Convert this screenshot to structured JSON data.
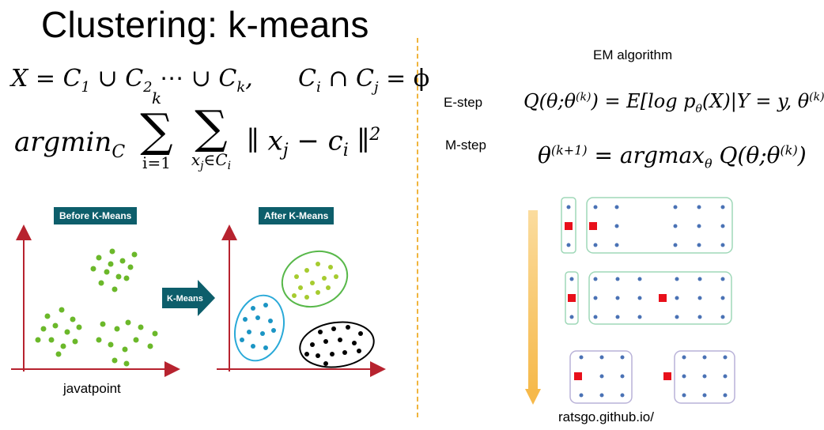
{
  "slide": {
    "title": "Clustering: k-means",
    "eq_partition_left": "X = C",
    "eq_partition_terms": [
      "1",
      "2",
      "k"
    ],
    "eq_intersection": "C",
    "eq_intersection_subs": [
      "i",
      "j"
    ],
    "eq_argmin": "argmin",
    "eq_argmin_sub": "C",
    "sum1_top": "k",
    "sum1_bottom": "i=1",
    "sum2_bottom": "x",
    "sum2_bottom_sub": "j",
    "sum2_bottom_rest": "∈C",
    "sum2_bottom_rest_sub": "i",
    "norm_expr_x": "x",
    "norm_expr_c": "c",
    "norm_sub_j": "j",
    "norm_sub_i": "i",
    "norm_exp": "2"
  },
  "left_figure": {
    "before_label": "Before K-Means",
    "after_label": "After K-Means",
    "arrow_label": "K-Means",
    "credit": "javatpoint",
    "colors": {
      "axis": "#b7232f",
      "green_dot": "#6bb82a",
      "lime_dot": "#a6cb2f",
      "blue_dot": "#1b95c4",
      "black_dot": "#000000",
      "tag_bg": "#0d5e6b",
      "ellipse_green": "#58b84a",
      "ellipse_blue": "#29a9d8",
      "ellipse_black": "#000000"
    }
  },
  "right_figure": {
    "title": "EM algorithm",
    "estep_label": "E-step",
    "mstep_label": "M-step",
    "estep_eq": "Q(θ;θ",
    "estep_sup": "(k)",
    "estep_rhs": ") = E[log p",
    "estep_sub": "θ",
    "estep_rhs2": "(X)|Y = y, θ",
    "estep_sup2": "(k)",
    "estep_end": "]",
    "mstep_lhs": "θ",
    "mstep_sup": "(k+1)",
    "mstep_rhs": " = argmax",
    "mstep_sub": "θ",
    "mstep_rhs2": " Q(θ;θ",
    "mstep_sup2": "(k)",
    "mstep_end": ")",
    "credit": "ratsgo.github.io/",
    "colors": {
      "dot": "#4a72b5",
      "center": "#e8101b",
      "box_green": "#9fd8b8",
      "box_purple": "#b9b2d8",
      "arrow": "#f6c56a"
    }
  }
}
